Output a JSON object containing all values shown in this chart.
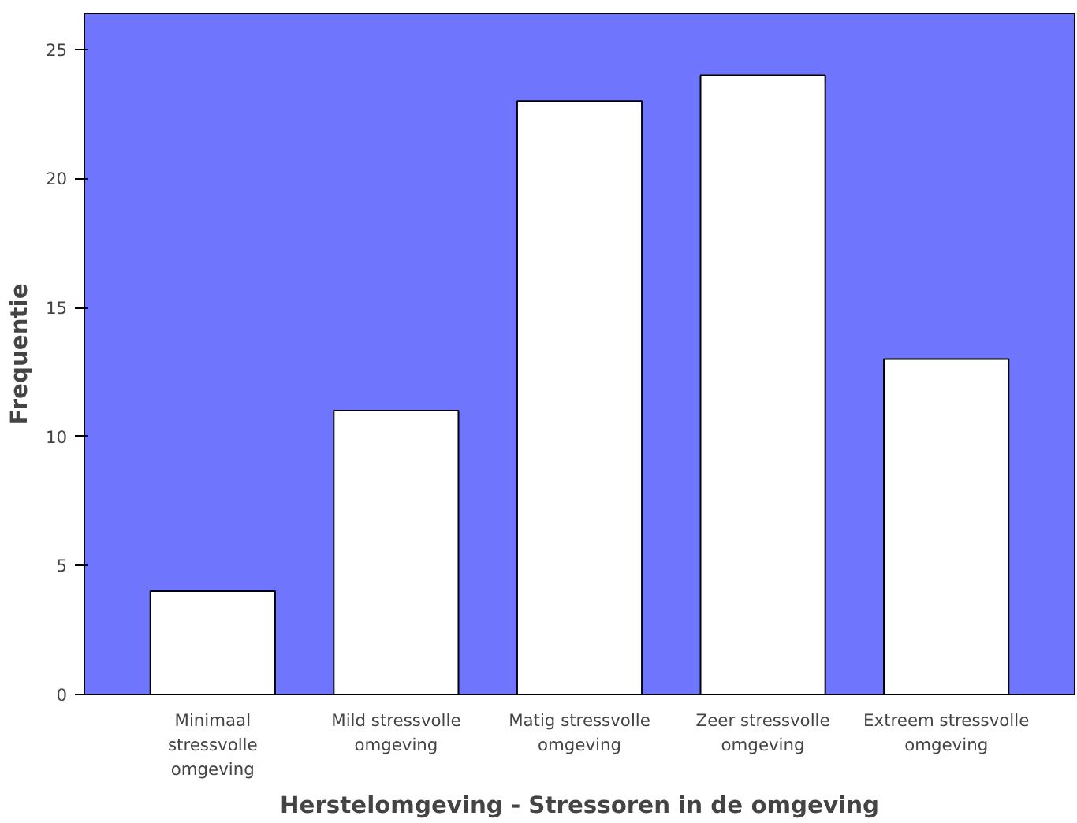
{
  "chart_data": {
    "type": "bar",
    "xlabel": "Herstelomgeving - Stressoren in de omgeving",
    "ylabel": "Frequentie",
    "categories": [
      "Minimaal stressvolle omgeving",
      "Mild stressvolle omgeving",
      "Matig stressvolle omgeving",
      "Zeer stressvolle omgeving",
      "Extreem stressvolle omgeving"
    ],
    "values": [
      4,
      11,
      23,
      24,
      13
    ],
    "color": "#ffffff",
    "ylim": [
      0,
      26.4
    ],
    "yticks": [
      0,
      5,
      10,
      15,
      20,
      25
    ],
    "grid": false
  }
}
